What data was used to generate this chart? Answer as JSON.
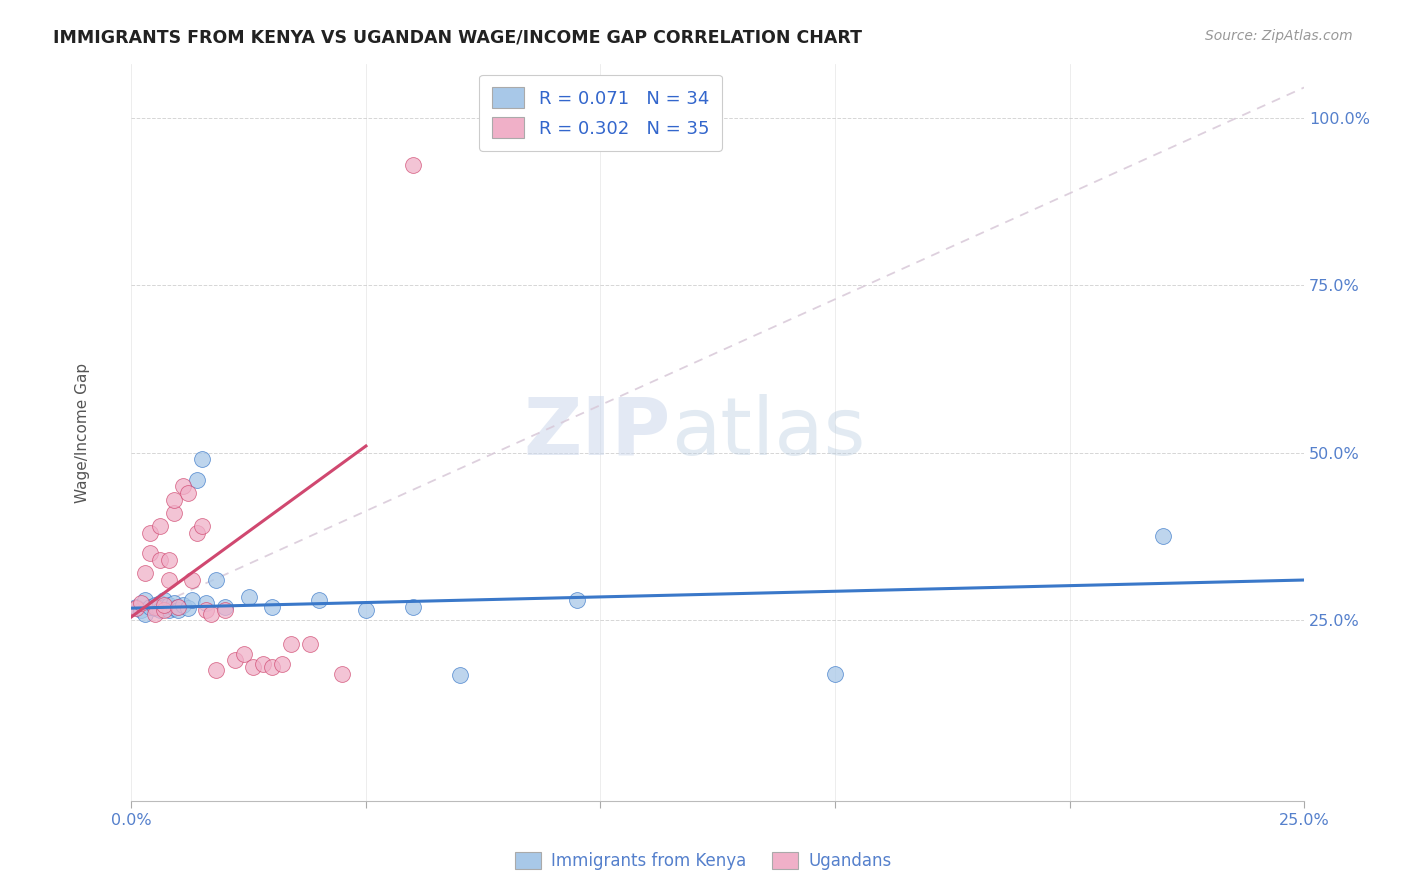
{
  "title": "IMMIGRANTS FROM KENYA VS UGANDAN WAGE/INCOME GAP CORRELATION CHART",
  "source": "Source: ZipAtlas.com",
  "ylabel": "Wage/Income Gap",
  "xlim": [
    0.0,
    0.25
  ],
  "ylim": [
    -0.02,
    1.08
  ],
  "xticks": [
    0.0,
    0.05,
    0.1,
    0.15,
    0.2,
    0.25
  ],
  "xticklabels": [
    "0.0%",
    "",
    "",
    "",
    "",
    "25.0%"
  ],
  "yticks": [
    0.25,
    0.5,
    0.75,
    1.0
  ],
  "yticklabels": [
    "25.0%",
    "50.0%",
    "75.0%",
    "100.0%"
  ],
  "color_blue": "#a8c8e8",
  "color_pink": "#f0b0c8",
  "line_blue": "#3a78c9",
  "line_pink": "#d04870",
  "line_dashed_color": "#d8c8d8",
  "watermark_zip": "ZIP",
  "watermark_atlas": "atlas",
  "blue_x": [
    0.001,
    0.002,
    0.003,
    0.003,
    0.004,
    0.005,
    0.005,
    0.006,
    0.006,
    0.007,
    0.007,
    0.008,
    0.008,
    0.009,
    0.009,
    0.01,
    0.01,
    0.011,
    0.012,
    0.013,
    0.014,
    0.015,
    0.016,
    0.018,
    0.02,
    0.025,
    0.03,
    0.04,
    0.05,
    0.06,
    0.07,
    0.095,
    0.15,
    0.22
  ],
  "blue_y": [
    0.27,
    0.265,
    0.26,
    0.28,
    0.27,
    0.268,
    0.272,
    0.275,
    0.265,
    0.28,
    0.27,
    0.272,
    0.265,
    0.268,
    0.275,
    0.27,
    0.265,
    0.272,
    0.268,
    0.28,
    0.46,
    0.49,
    0.275,
    0.31,
    0.27,
    0.285,
    0.27,
    0.28,
    0.265,
    0.27,
    0.168,
    0.28,
    0.17,
    0.375
  ],
  "pink_x": [
    0.001,
    0.002,
    0.003,
    0.004,
    0.004,
    0.005,
    0.005,
    0.006,
    0.006,
    0.007,
    0.007,
    0.008,
    0.008,
    0.009,
    0.009,
    0.01,
    0.011,
    0.012,
    0.013,
    0.014,
    0.015,
    0.016,
    0.017,
    0.018,
    0.02,
    0.022,
    0.024,
    0.026,
    0.028,
    0.03,
    0.032,
    0.034,
    0.038,
    0.045,
    0.06
  ],
  "pink_y": [
    0.268,
    0.275,
    0.32,
    0.35,
    0.38,
    0.27,
    0.26,
    0.34,
    0.39,
    0.265,
    0.272,
    0.31,
    0.34,
    0.41,
    0.43,
    0.27,
    0.45,
    0.44,
    0.31,
    0.38,
    0.39,
    0.265,
    0.26,
    0.175,
    0.265,
    0.19,
    0.2,
    0.18,
    0.185,
    0.18,
    0.185,
    0.215,
    0.215,
    0.17,
    0.93
  ],
  "blue_trend": [
    0.0,
    0.25,
    0.268,
    0.31
  ],
  "pink_trend": [
    0.0,
    0.05,
    0.255,
    0.51
  ],
  "dashed_line": [
    0.0,
    0.25,
    0.255,
    1.045
  ]
}
